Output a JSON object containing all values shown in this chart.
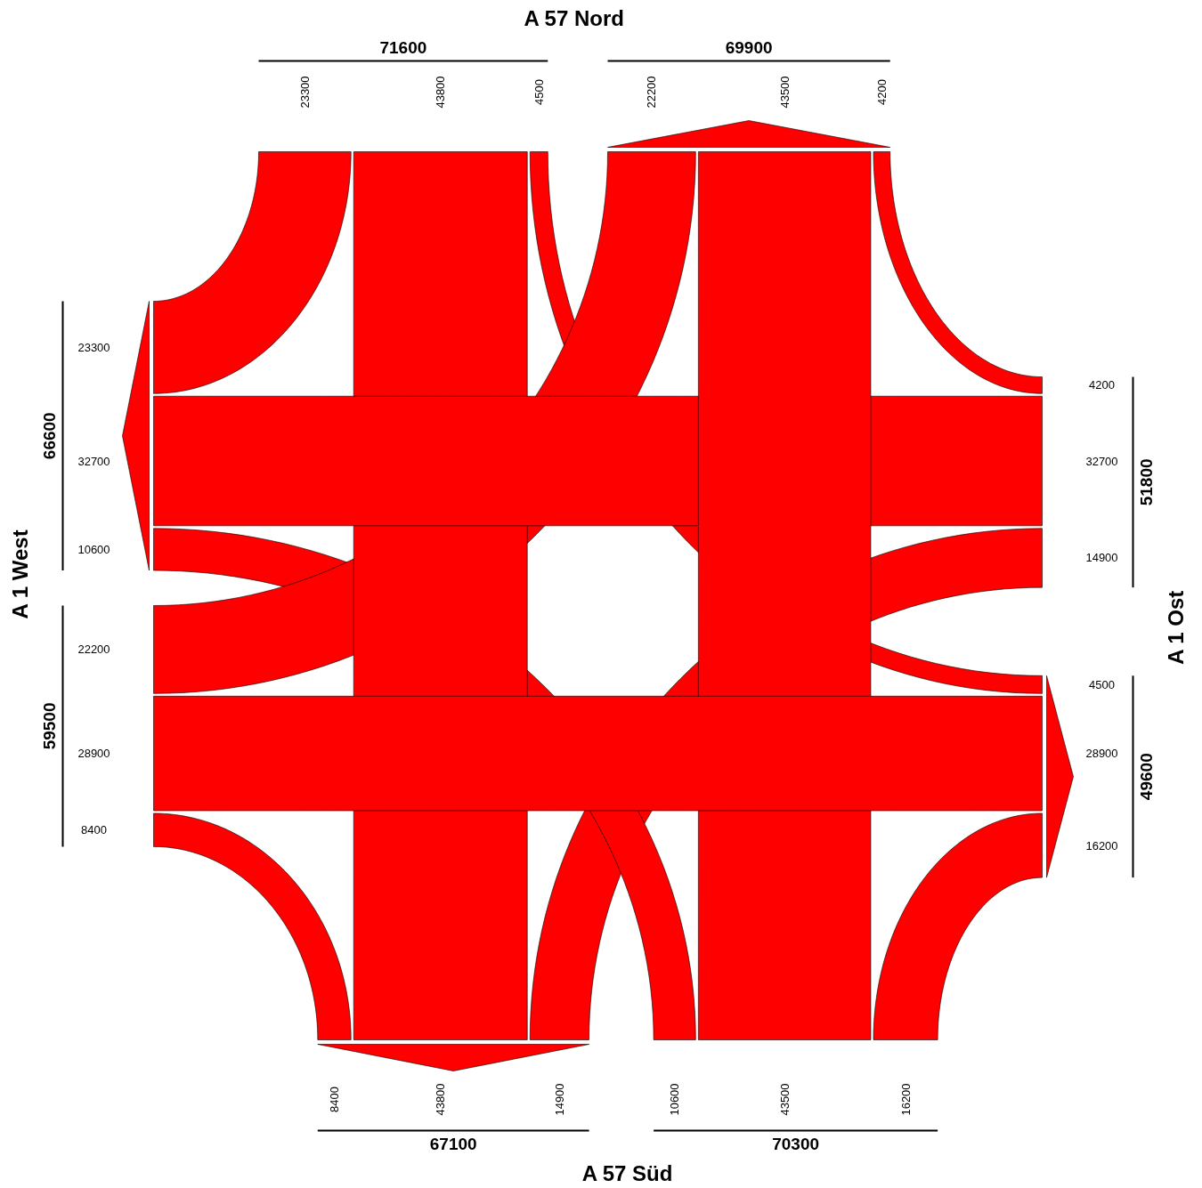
{
  "chart_data": {
    "type": "other",
    "categories": [
      "A 57 Nord",
      "A 1 Ost",
      "A 57 Süd",
      "A 1 West"
    ],
    "series": [
      {
        "color": "#ff0000",
        "values": [
          null,
          4500,
          43800,
          23300
        ]
      },
      {
        "color": "#ff0000",
        "values": [
          4200,
          null,
          14900,
          32700
        ]
      },
      {
        "color": "#ff0000",
        "values": [
          43500,
          16200,
          null,
          10600
        ]
      },
      {
        "color": "#ff0000",
        "values": [
          22200,
          28900,
          8400,
          null
        ]
      },
      {
        "color": "#ff0000",
        "values": [
          null,
          4200,
          43500,
          22200
        ]
      },
      {
        "color": "#ff0000",
        "values": [
          4500,
          null,
          16200,
          28900
        ]
      },
      {
        "color": "#ff0000",
        "values": [
          43800,
          14900,
          null,
          8400
        ]
      },
      {
        "color": "#ff0000",
        "values": [
          23300,
          32700,
          10600,
          null
        ]
      }
    ],
    "totals": [
      [
        "71600",
        "69900"
      ],
      [
        "51800",
        "49600"
      ],
      [
        "70300",
        "67100"
      ],
      [
        "59500",
        "66600"
      ]
    ],
    "data_labels": true
  }
}
